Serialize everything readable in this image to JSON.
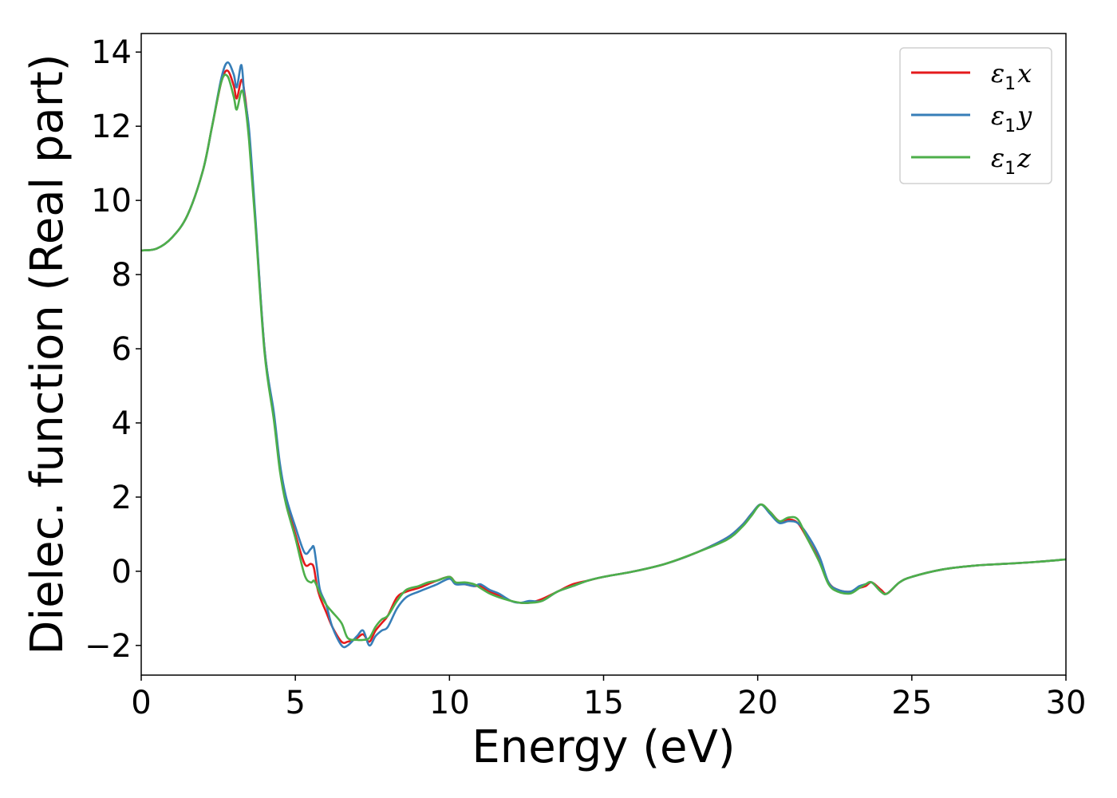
{
  "chart_data": {
    "type": "line",
    "xlabel": "Energy (eV)",
    "ylabel": "Dielec. function (Real part)",
    "xlim": [
      0,
      30
    ],
    "ylim": [
      -2.8,
      14.5
    ],
    "xticks": [
      0,
      5,
      10,
      15,
      20,
      25,
      30
    ],
    "yticks": [
      -2,
      0,
      2,
      4,
      6,
      8,
      10,
      12,
      14
    ],
    "ytick_labels": [
      "−2",
      "0",
      "2",
      "4",
      "6",
      "8",
      "10",
      "12",
      "14"
    ],
    "grid": false,
    "legend": "top-right",
    "series": [
      {
        "name": "ε1x",
        "symbol": "ε",
        "sub": "1",
        "component": "x",
        "color": "#e41a1c",
        "x": [
          0,
          0.5,
          1.0,
          1.5,
          2.0,
          2.3,
          2.6,
          2.8,
          3.0,
          3.1,
          3.25,
          3.35,
          3.5,
          3.7,
          4.0,
          4.3,
          4.5,
          4.7,
          5.0,
          5.3,
          5.5,
          5.6,
          5.7,
          5.8,
          6.0,
          6.2,
          6.5,
          6.7,
          7.0,
          7.2,
          7.4,
          7.6,
          7.8,
          8.0,
          8.3,
          8.6,
          9.0,
          9.3,
          9.6,
          10.0,
          10.2,
          10.5,
          10.8,
          11.0,
          11.3,
          11.6,
          12.0,
          12.3,
          12.6,
          13.0,
          13.5,
          14.0,
          14.5,
          15.0,
          16.0,
          17.0,
          18.0,
          19.0,
          19.5,
          19.8,
          20.1,
          20.4,
          20.7,
          21.0,
          21.3,
          21.6,
          22.0,
          22.3,
          22.6,
          23.0,
          23.3,
          23.5,
          23.7,
          24.0,
          24.2,
          24.6,
          25.0,
          26.0,
          27.0,
          28.0,
          29.0,
          30.0
        ],
        "y": [
          8.65,
          8.7,
          9.0,
          9.6,
          10.8,
          12.0,
          13.2,
          13.5,
          13.1,
          12.75,
          13.25,
          12.9,
          11.8,
          9.5,
          6.0,
          4.2,
          2.8,
          1.9,
          1.0,
          0.2,
          0.2,
          0.1,
          -0.4,
          -0.7,
          -1.1,
          -1.5,
          -1.9,
          -1.9,
          -1.8,
          -1.7,
          -1.9,
          -1.6,
          -1.4,
          -1.2,
          -0.7,
          -0.55,
          -0.45,
          -0.35,
          -0.25,
          -0.15,
          -0.3,
          -0.35,
          -0.4,
          -0.4,
          -0.55,
          -0.65,
          -0.8,
          -0.85,
          -0.85,
          -0.75,
          -0.55,
          -0.35,
          -0.25,
          -0.15,
          0.0,
          0.2,
          0.5,
          0.9,
          1.25,
          1.55,
          1.8,
          1.6,
          1.35,
          1.4,
          1.3,
          0.9,
          0.3,
          -0.3,
          -0.5,
          -0.55,
          -0.45,
          -0.4,
          -0.3,
          -0.5,
          -0.6,
          -0.3,
          -0.15,
          0.05,
          0.15,
          0.2,
          0.25,
          0.32
        ]
      },
      {
        "name": "ε1y",
        "symbol": "ε",
        "sub": "1",
        "component": "y",
        "color": "#377eb8",
        "x": [
          0,
          0.5,
          1.0,
          1.5,
          2.0,
          2.3,
          2.6,
          2.8,
          3.0,
          3.1,
          3.25,
          3.35,
          3.5,
          3.7,
          4.0,
          4.3,
          4.5,
          4.7,
          5.0,
          5.3,
          5.5,
          5.6,
          5.7,
          5.8,
          6.0,
          6.2,
          6.5,
          6.7,
          7.0,
          7.2,
          7.4,
          7.6,
          7.8,
          8.0,
          8.3,
          8.6,
          9.0,
          9.3,
          9.6,
          10.0,
          10.2,
          10.5,
          10.8,
          11.0,
          11.3,
          11.6,
          12.0,
          12.3,
          12.6,
          13.0,
          13.5,
          14.0,
          14.5,
          15.0,
          16.0,
          17.0,
          18.0,
          19.0,
          19.5,
          19.8,
          20.1,
          20.4,
          20.7,
          21.0,
          21.3,
          21.6,
          22.0,
          22.3,
          22.6,
          23.0,
          23.3,
          23.5,
          23.7,
          24.0,
          24.2,
          24.6,
          25.0,
          26.0,
          27.0,
          28.0,
          29.0,
          30.0
        ],
        "y": [
          8.65,
          8.7,
          9.0,
          9.6,
          10.8,
          12.0,
          13.3,
          13.72,
          13.4,
          13.05,
          13.65,
          12.8,
          11.9,
          9.6,
          6.0,
          4.3,
          2.9,
          2.0,
          1.2,
          0.5,
          0.6,
          0.65,
          0.1,
          -0.5,
          -0.9,
          -1.5,
          -2.0,
          -2.0,
          -1.75,
          -1.6,
          -2.0,
          -1.75,
          -1.6,
          -1.5,
          -1.0,
          -0.7,
          -0.55,
          -0.45,
          -0.35,
          -0.2,
          -0.35,
          -0.35,
          -0.4,
          -0.35,
          -0.5,
          -0.6,
          -0.8,
          -0.85,
          -0.8,
          -0.8,
          -0.55,
          -0.4,
          -0.25,
          -0.15,
          0.0,
          0.2,
          0.5,
          0.9,
          1.25,
          1.55,
          1.8,
          1.55,
          1.3,
          1.35,
          1.3,
          1.0,
          0.4,
          -0.3,
          -0.5,
          -0.55,
          -0.4,
          -0.35,
          -0.3,
          -0.55,
          -0.6,
          -0.3,
          -0.15,
          0.05,
          0.15,
          0.2,
          0.25,
          0.32
        ]
      },
      {
        "name": "ε1z",
        "symbol": "ε",
        "sub": "1",
        "component": "z",
        "color": "#4daf4a",
        "x": [
          0,
          0.5,
          1.0,
          1.5,
          2.0,
          2.3,
          2.6,
          2.8,
          3.0,
          3.1,
          3.25,
          3.35,
          3.5,
          3.7,
          4.0,
          4.3,
          4.5,
          4.7,
          5.0,
          5.3,
          5.5,
          5.6,
          5.7,
          5.8,
          6.0,
          6.2,
          6.5,
          6.7,
          7.0,
          7.2,
          7.4,
          7.6,
          7.8,
          8.0,
          8.3,
          8.6,
          9.0,
          9.3,
          9.6,
          10.0,
          10.2,
          10.5,
          10.8,
          11.0,
          11.3,
          11.6,
          12.0,
          12.3,
          12.6,
          13.0,
          13.5,
          14.0,
          14.5,
          15.0,
          16.0,
          17.0,
          18.0,
          19.0,
          19.5,
          19.8,
          20.1,
          20.4,
          20.7,
          21.0,
          21.3,
          21.6,
          22.0,
          22.3,
          22.6,
          23.0,
          23.3,
          23.5,
          23.7,
          24.0,
          24.2,
          24.6,
          25.0,
          26.0,
          27.0,
          28.0,
          29.0,
          30.0
        ],
        "y": [
          8.65,
          8.7,
          9.0,
          9.6,
          10.8,
          12.0,
          13.2,
          13.35,
          12.8,
          12.45,
          12.95,
          12.7,
          11.6,
          9.4,
          5.9,
          4.1,
          2.7,
          1.8,
          0.9,
          -0.1,
          -0.3,
          -0.25,
          -0.4,
          -0.6,
          -0.9,
          -1.1,
          -1.4,
          -1.8,
          -1.85,
          -1.85,
          -1.8,
          -1.5,
          -1.3,
          -1.2,
          -0.8,
          -0.5,
          -0.4,
          -0.3,
          -0.25,
          -0.15,
          -0.3,
          -0.3,
          -0.35,
          -0.45,
          -0.6,
          -0.7,
          -0.8,
          -0.85,
          -0.85,
          -0.8,
          -0.55,
          -0.4,
          -0.25,
          -0.15,
          0.0,
          0.2,
          0.5,
          0.85,
          1.2,
          1.5,
          1.8,
          1.6,
          1.35,
          1.45,
          1.4,
          0.9,
          0.25,
          -0.35,
          -0.55,
          -0.6,
          -0.45,
          -0.35,
          -0.3,
          -0.55,
          -0.6,
          -0.3,
          -0.15,
          0.05,
          0.15,
          0.2,
          0.25,
          0.32
        ]
      }
    ]
  }
}
